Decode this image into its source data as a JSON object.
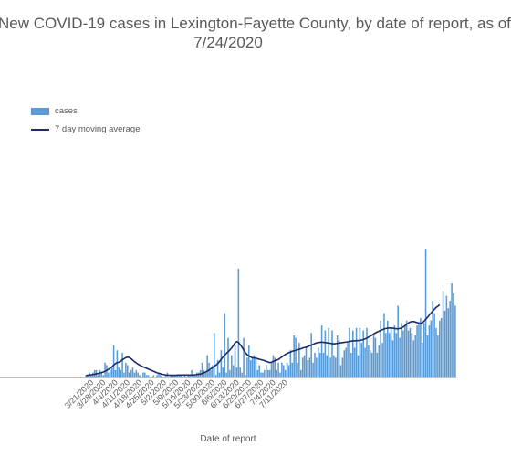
{
  "chart_data": {
    "type": "bar",
    "title": "New COVID-19 cases in Lexington-Fayette County, by date of report, as of",
    "subtitle": "7/24/2020",
    "xlabel": "Date of report",
    "ylabel": "",
    "legend_placement": "top-left",
    "grid": false,
    "colors": {
      "bars": "#5b9bd5",
      "average": "#1f2a6b"
    },
    "tick_labels": [
      "3/21/2020",
      "3/28/2020",
      "4/4/2020",
      "4/11/2020",
      "4/18/2020",
      "4/25/2020",
      "5/2/2020",
      "5/9/2020",
      "5/16/2020",
      "5/23/2020",
      "5/30/2020",
      "6/6/2020",
      "6/13/2020",
      "6/20/2020",
      "6/27/2020",
      "7/4/2020",
      "7/11/2020"
    ],
    "ylim": [
      0,
      72
    ],
    "series": [
      {
        "name": "cases",
        "type": "bar",
        "values": [
          1,
          1,
          2,
          1,
          2,
          3,
          3,
          1,
          3,
          2,
          1,
          6,
          5,
          2,
          3,
          4,
          13,
          3,
          11,
          4,
          3,
          10,
          2,
          6,
          5,
          2,
          3,
          4,
          2,
          3,
          2,
          1,
          0,
          2,
          2,
          1,
          1,
          0,
          0,
          1,
          0,
          1,
          2,
          1,
          0,
          0,
          1,
          2,
          0,
          1,
          1,
          1,
          1,
          1,
          1,
          1,
          0,
          1,
          0,
          1,
          1,
          3,
          1,
          1,
          2,
          2,
          3,
          6,
          3,
          2,
          9,
          6,
          3,
          5,
          18,
          1,
          7,
          2,
          11,
          4,
          26,
          2,
          16,
          3,
          9,
          5,
          13,
          4,
          44,
          4,
          2,
          16,
          1,
          8,
          13,
          7,
          8,
          9,
          8,
          3,
          5,
          2,
          2,
          3,
          5,
          3,
          3,
          6,
          9,
          8,
          3,
          6,
          2,
          6,
          5,
          3,
          6,
          5,
          11,
          6,
          17,
          16,
          6,
          14,
          3,
          8,
          9,
          12,
          7,
          8,
          18,
          6,
          10,
          8,
          12,
          10,
          21,
          10,
          19,
          9,
          20,
          8,
          19,
          9,
          8,
          17,
          15,
          5,
          8,
          11,
          12,
          14,
          20,
          10,
          19,
          12,
          20,
          9,
          20,
          14,
          19,
          12,
          20,
          13,
          11,
          10,
          17,
          16,
          10,
          13,
          23,
          14,
          26,
          18,
          23,
          18,
          20,
          15,
          21,
          18,
          29,
          16,
          22,
          19,
          21,
          23,
          19,
          20,
          18,
          15,
          17,
          21,
          22,
          24,
          14,
          22,
          52,
          17,
          21,
          23,
          31,
          26,
          20,
          17,
          23,
          24,
          35,
          27,
          33,
          28,
          31,
          38,
          34,
          29
        ]
      },
      {
        "name": "7 day moving average",
        "type": "line",
        "values": [
          0.8,
          0.9,
          1.0,
          1.1,
          1.2,
          1.3,
          1.5,
          1.6,
          1.8,
          2.0,
          2.2,
          2.5,
          2.9,
          3.3,
          3.8,
          4.3,
          5.0,
          5.6,
          6.0,
          6.2,
          6.5,
          7.2,
          7.6,
          8.0,
          8.2,
          8.1,
          7.6,
          7.0,
          6.4,
          5.9,
          5.4,
          5.0,
          4.6,
          4.3,
          4.0,
          3.7,
          3.4,
          3.1,
          2.8,
          2.5,
          2.2,
          1.9,
          1.7,
          1.5,
          1.3,
          1.2,
          1.0,
          1.0,
          0.9,
          0.9,
          0.9,
          0.9,
          0.9,
          1.0,
          1.0,
          1.0,
          1.0,
          1.0,
          1.0,
          1.0,
          1.0,
          1.0,
          1.0,
          1.1,
          1.2,
          1.3,
          1.4,
          1.6,
          1.9,
          2.2,
          2.6,
          3.0,
          3.5,
          4.0,
          4.5,
          5.0,
          5.6,
          6.4,
          7.4,
          8.3,
          9.0,
          9.7,
          10.4,
          11.1,
          11.9,
          12.9,
          14.0,
          14.5,
          14.1,
          13.3,
          12.2,
          11.1,
          10.0,
          9.2,
          8.7,
          8.3,
          8.0,
          7.9,
          7.8,
          7.6,
          7.4,
          7.2,
          7.0,
          6.8,
          6.5,
          6.3,
          6.0,
          6.2,
          6.5,
          6.8,
          7.0,
          7.3,
          7.8,
          8.3,
          8.8,
          9.3,
          9.7,
          10.0,
          10.3,
          10.6,
          10.8,
          11.0,
          11.2,
          11.4,
          11.6,
          11.9,
          12.1,
          12.2,
          12.5,
          12.8,
          13.1,
          13.4,
          13.7,
          14.0,
          14.1,
          14.2,
          14.3,
          14.2,
          14.1,
          14.0,
          13.9,
          13.8,
          13.7,
          13.6,
          13.7,
          13.8,
          13.9,
          14.0,
          14.1,
          14.2,
          14.3,
          14.4,
          14.5,
          14.7,
          14.8,
          14.8,
          14.9,
          14.9,
          15.0,
          15.1,
          15.3,
          15.6,
          15.9,
          16.3,
          16.7,
          17.1,
          17.6,
          18.0,
          18.4,
          18.7,
          19.0,
          19.3,
          19.6,
          19.8,
          19.9,
          20.0,
          20.0,
          19.9,
          19.8,
          19.7,
          19.7,
          19.8,
          20.0,
          20.4,
          20.9,
          21.5,
          22.0,
          22.4,
          22.6,
          22.6,
          22.4,
          22.2,
          22.0,
          21.9,
          22.1,
          22.7,
          23.5,
          24.3,
          25.2,
          26.0,
          26.8,
          27.6,
          28.3,
          28.8,
          29.4
        ]
      }
    ]
  }
}
